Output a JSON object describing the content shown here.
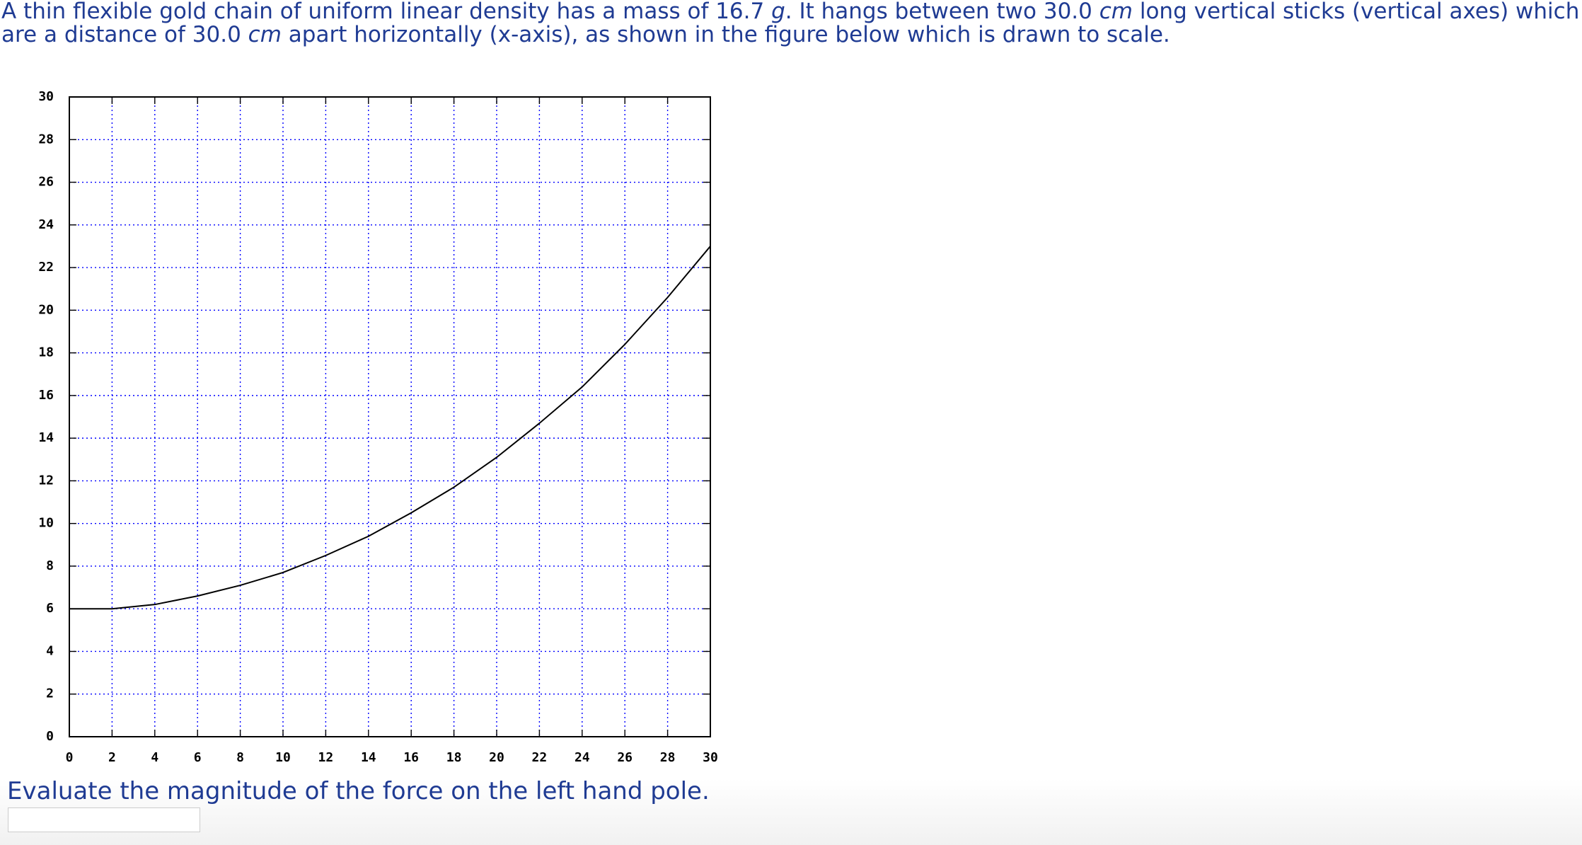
{
  "intro": [
    {
      "text": "A thin flexible gold chain of uniform linear density has a mass of 16.7 ",
      "italic": false
    },
    {
      "text": "g",
      "italic": true
    },
    {
      "text": ". It hangs between two 30.0 ",
      "italic": false
    },
    {
      "text": "cm",
      "italic": true
    },
    {
      "text": " long vertical sticks (vertical axes) which are a distance of 30.0 ",
      "italic": false
    },
    {
      "text": "cm",
      "italic": true
    },
    {
      "text": " apart horizontally (x-axis), as shown in the figure below which is drawn to scale.",
      "italic": false
    }
  ],
  "chart_data": {
    "type": "line",
    "x": [
      0,
      2,
      4,
      6,
      8,
      10,
      12,
      14,
      16,
      18,
      20,
      22,
      24,
      26,
      28,
      30
    ],
    "values": [
      6,
      6,
      6.2,
      6.6,
      7.1,
      7.7,
      8.5,
      9.4,
      10.5,
      11.7,
      13.1,
      14.7,
      16.4,
      18.4,
      20.6,
      23
    ],
    "color": "#000000",
    "xlim": [
      0,
      30
    ],
    "ylim": [
      0,
      30
    ],
    "xticks": [
      0,
      2,
      4,
      6,
      8,
      10,
      12,
      14,
      16,
      18,
      20,
      22,
      24,
      26,
      28,
      30
    ],
    "yticks": [
      0,
      2,
      4,
      6,
      8,
      10,
      12,
      14,
      16,
      18,
      20,
      22,
      24,
      26,
      28,
      30
    ],
    "grid": true,
    "grid_color": "#0000ff"
  },
  "question": "Evaluate the magnitude of the force on the left hand pole."
}
